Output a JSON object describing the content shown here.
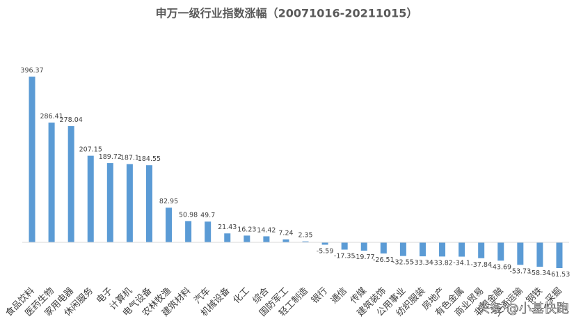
{
  "chart_data": {
    "type": "bar",
    "title": "申万一级行业指数涨幅（20071016-20211015）",
    "categories": [
      "食品饮料",
      "医药生物",
      "家用电器",
      "休闲服务",
      "电子",
      "计算机",
      "电气设备",
      "农林牧渔",
      "建筑材料",
      "汽车",
      "机械设备",
      "化工",
      "综合",
      "国防军工",
      "轻工制造",
      "银行",
      "通信",
      "传媒",
      "建筑装饰",
      "公用事业",
      "纺织服装",
      "房地产",
      "有色金属",
      "商业贸易",
      "非银金融",
      "交通运输",
      "钢铁",
      "采掘"
    ],
    "values": [
      396.37,
      286.41,
      278.04,
      207.15,
      189.72,
      187.1,
      184.55,
      82.95,
      50.98,
      49.7,
      21.43,
      16.23,
      14.42,
      7.24,
      2.35,
      -5.59,
      -17.35,
      -19.77,
      -26.51,
      -32.55,
      -33.34,
      -33.82,
      -34.1,
      -37.84,
      -43.69,
      -53.73,
      -58.34,
      -61.53
    ],
    "color": "#5b9bd5",
    "watermark": "头条 @小基快跑"
  }
}
